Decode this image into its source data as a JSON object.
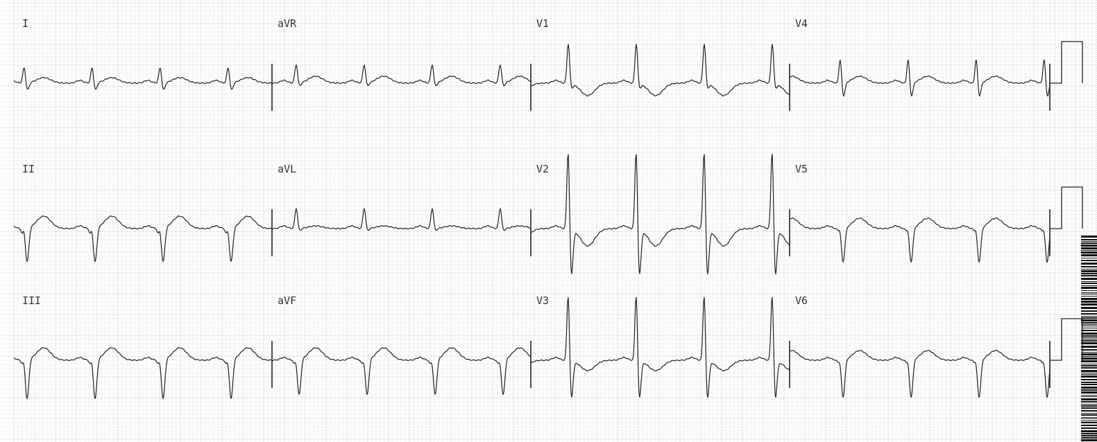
{
  "leads": [
    {
      "label": "I",
      "row": 0,
      "col": 0
    },
    {
      "label": "aVR",
      "row": 0,
      "col": 1
    },
    {
      "label": "V1",
      "row": 0,
      "col": 2
    },
    {
      "label": "V4",
      "row": 0,
      "col": 3
    },
    {
      "label": "II",
      "row": 1,
      "col": 0
    },
    {
      "label": "aVL",
      "row": 1,
      "col": 1
    },
    {
      "label": "V2",
      "row": 1,
      "col": 2
    },
    {
      "label": "V5",
      "row": 1,
      "col": 3
    },
    {
      "label": "III",
      "row": 2,
      "col": 0
    },
    {
      "label": "aVF",
      "row": 2,
      "col": 1
    },
    {
      "label": "V3",
      "row": 2,
      "col": 2
    },
    {
      "label": "V6",
      "row": 2,
      "col": 3
    }
  ],
  "colors": {
    "grid_minor": "#c8c8c8",
    "grid_major": "#a8a8a8",
    "trace": "#222222"
  }
}
